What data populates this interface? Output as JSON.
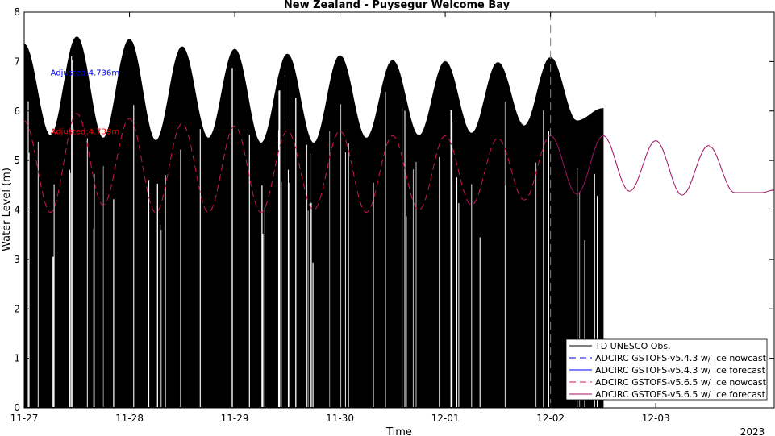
{
  "chart_data": {
    "type": "line",
    "title": "New Zealand - Puysegur Welcome Bay",
    "xlabel": "Time",
    "ylabel": "Water Level (m)",
    "ylim": [
      0,
      8
    ],
    "xlim": [
      "2022-11-27 00:00",
      "2022-12-04 03:00"
    ],
    "yticks": [
      0,
      1,
      2,
      3,
      4,
      5,
      6,
      7,
      8
    ],
    "xticks": [
      {
        "label": "11-27",
        "t": "2022-11-27 00:00"
      },
      {
        "label": "11-28",
        "t": "2022-11-28 00:00"
      },
      {
        "label": "11-29",
        "t": "2022-11-29 00:00"
      },
      {
        "label": "11-30",
        "t": "2022-11-30 00:00"
      },
      {
        "label": "12-01",
        "t": "2022-12-01 00:00"
      },
      {
        "label": "12-02",
        "t": "2022-12-02 00:00"
      },
      {
        "label": "12-03",
        "t": "2022-12-03 00:00"
      }
    ],
    "year_label": "2023",
    "nowcast_end": "2022-12-02 00:00",
    "grid": false,
    "legend_position": "bottom-right",
    "annotations": [
      {
        "text": "Adjusted:4.736m",
        "color": "#0000ff",
        "t": "2022-11-27 06:00",
        "y": 6.77
      },
      {
        "text": "Adjusted:4.739m",
        "color": "#ff0000",
        "t": "2022-11-27 06:00",
        "y": 5.58
      }
    ],
    "series": [
      {
        "name": "TD UNESCO Obs.",
        "color": "#000000",
        "style": "solid",
        "display": "dense-band-to-zero",
        "x": [
          "2022-11-27 00:00",
          "2022-11-27 06:00",
          "2022-11-27 12:00",
          "2022-11-27 18:00",
          "2022-11-28 00:00",
          "2022-11-28 06:00",
          "2022-11-28 12:00",
          "2022-11-28 18:00",
          "2022-11-29 00:00",
          "2022-11-29 06:00",
          "2022-11-29 12:00",
          "2022-11-29 18:00",
          "2022-11-30 00:00",
          "2022-11-30 06:00",
          "2022-11-30 12:00",
          "2022-11-30 18:00",
          "2022-12-01 00:00",
          "2022-12-01 06:00",
          "2022-12-01 12:00",
          "2022-12-01 18:00",
          "2022-12-02 00:00",
          "2022-12-02 06:00",
          "2022-12-02 12:00"
        ],
        "y": [
          7.35,
          5.5,
          7.5,
          5.45,
          7.45,
          5.4,
          7.3,
          5.45,
          7.25,
          5.35,
          7.15,
          5.35,
          7.12,
          5.45,
          7.02,
          5.5,
          7.0,
          5.55,
          6.98,
          5.7,
          7.08,
          5.8,
          6.05
        ]
      },
      {
        "name": "ADCIRC GSTOFS-v5.4.3 w/ ice nowcast",
        "color": "#0000ff",
        "style": "dashed",
        "x": [],
        "y": []
      },
      {
        "name": "ADCIRC GSTOFS-v5.4.3 w/ ice forecast",
        "color": "#0000ff",
        "style": "solid",
        "x": [],
        "y": []
      },
      {
        "name": "ADCIRC GSTOFS-v5.6.5 w/ ice nowcast",
        "color": "#d01060",
        "style": "dashed",
        "x": [
          "2022-11-27 00:00",
          "2022-11-27 06:00",
          "2022-11-27 12:00",
          "2022-11-27 18:00",
          "2022-11-28 00:00",
          "2022-11-28 06:00",
          "2022-11-28 12:00",
          "2022-11-28 18:00",
          "2022-11-29 00:00",
          "2022-11-29 06:00",
          "2022-11-29 12:00",
          "2022-11-29 18:00",
          "2022-11-30 00:00",
          "2022-11-30 06:00",
          "2022-11-30 12:00",
          "2022-11-30 18:00",
          "2022-12-01 00:00",
          "2022-12-01 06:00",
          "2022-12-01 12:00",
          "2022-12-01 18:00",
          "2022-12-02 00:00"
        ],
        "y": [
          5.8,
          3.95,
          5.95,
          4.1,
          5.85,
          3.95,
          5.75,
          3.95,
          5.7,
          3.95,
          5.6,
          4.0,
          5.6,
          3.95,
          5.5,
          4.0,
          5.5,
          4.1,
          5.45,
          4.2,
          5.5
        ]
      },
      {
        "name": "ADCIRC GSTOFS-v5.6.5 w/ ice forecast",
        "color": "#a01060",
        "style": "solid",
        "x": [
          "2022-12-02 00:00",
          "2022-12-02 06:00",
          "2022-12-02 12:00",
          "2022-12-02 18:00",
          "2022-12-03 00:00",
          "2022-12-03 06:00",
          "2022-12-03 12:00",
          "2022-12-03 18:00",
          "2022-12-04 00:00",
          "2022-12-04 03:00"
        ],
        "y": [
          5.5,
          4.32,
          5.5,
          4.38,
          5.4,
          4.3,
          5.3,
          4.35,
          4.35,
          4.4
        ]
      }
    ]
  }
}
